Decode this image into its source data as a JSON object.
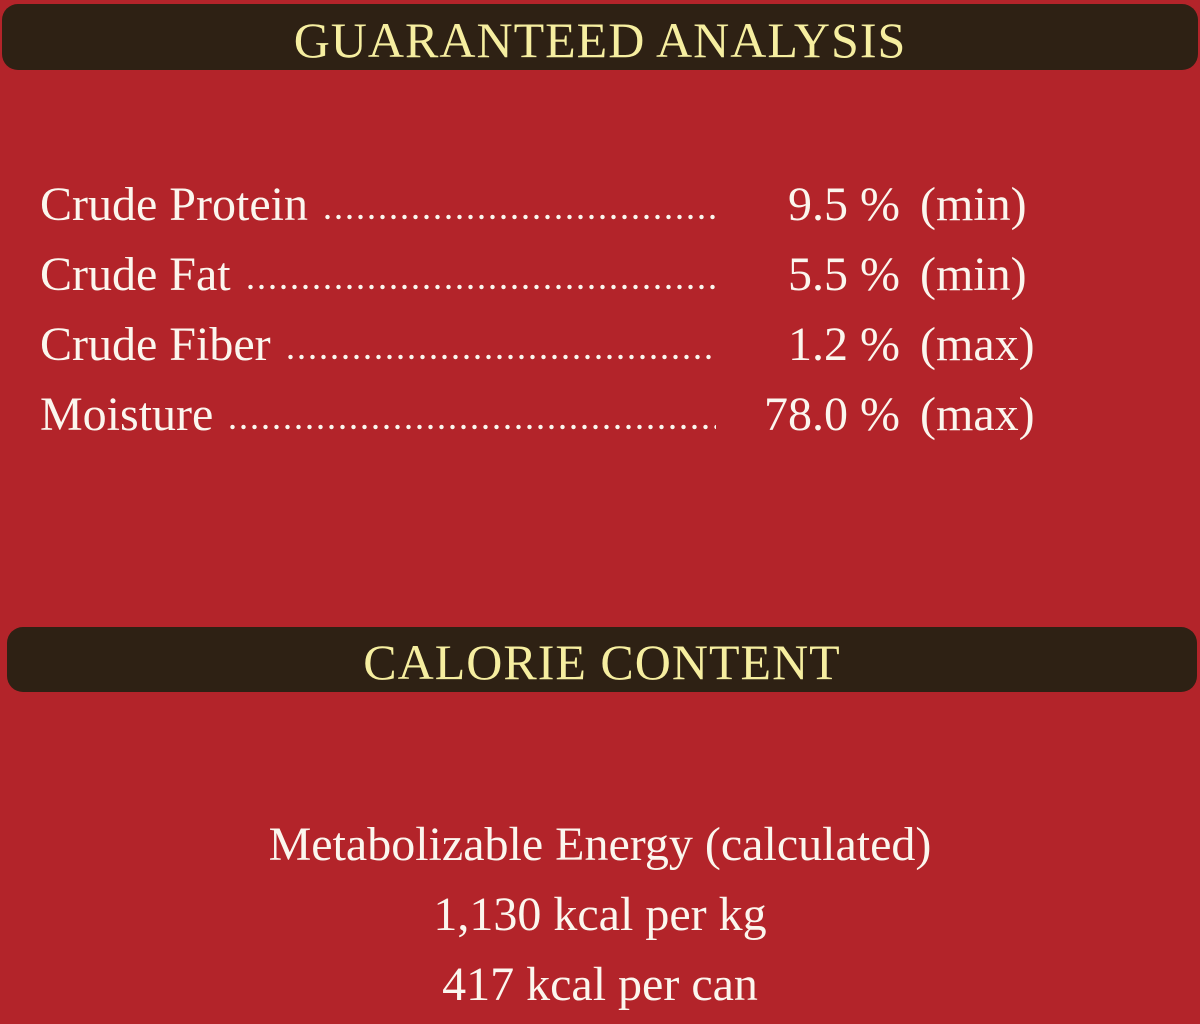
{
  "guaranteed_analysis": {
    "title": "GUARANTEED ANALYSIS",
    "rows": [
      {
        "name": "Crude Protein",
        "value": "9.5 %",
        "qualifier": "(min)"
      },
      {
        "name": "Crude Fat",
        "value": "5.5 %",
        "qualifier": "(min)"
      },
      {
        "name": "Crude Fiber",
        "value": "1.2 %",
        "qualifier": "(max)"
      },
      {
        "name": "Moisture",
        "value": "78.0 %",
        "qualifier": "(max)"
      }
    ]
  },
  "calorie_content": {
    "title": "CALORIE CONTENT",
    "lines": [
      "Metabolizable Energy (calculated)",
      "1,130 kcal per kg",
      "417 kcal per can"
    ]
  }
}
